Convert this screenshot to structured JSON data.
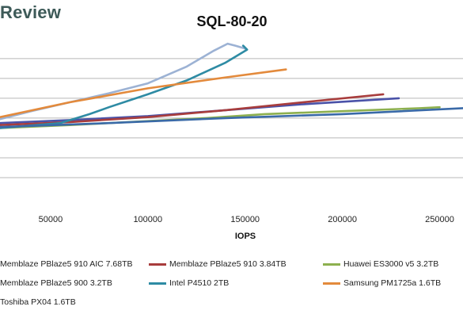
{
  "brand": {
    "text": "Review"
  },
  "chart_data": {
    "type": "line",
    "title": "SQL-80-20",
    "xlabel": "IOPS",
    "ylabel": "",
    "xlim": [
      24000,
      262000
    ],
    "ylim": [
      0,
      14
    ],
    "grid": true,
    "legend_position": "bottom",
    "x_ticks": [
      50000,
      100000,
      150000,
      200000,
      250000
    ],
    "y_ticks": [
      2,
      4,
      6,
      8,
      10,
      12,
      14
    ],
    "series": [
      {
        "name": "Memblaze PBlaze5 910 AIC 7.68TB",
        "color": "#4a52a8",
        "points": [
          [
            24000,
            7.5
          ],
          [
            60000,
            7.8
          ],
          [
            100000,
            8.2
          ],
          [
            140000,
            8.8
          ],
          [
            180000,
            9.4
          ],
          [
            229000,
            10.0
          ]
        ]
      },
      {
        "name": "Memblaze PBlaze5 910 3.84TB",
        "color": "#a83d3d",
        "points": [
          [
            24000,
            7.3
          ],
          [
            60000,
            7.6
          ],
          [
            100000,
            8.1
          ],
          [
            140000,
            8.8
          ],
          [
            180000,
            9.6
          ],
          [
            221000,
            10.4
          ]
        ]
      },
      {
        "name": "Huawei ES3000 v5 3.2TB",
        "color": "#8db04f",
        "points": [
          [
            24000,
            7.0
          ],
          [
            60000,
            7.3
          ],
          [
            100000,
            7.7
          ],
          [
            130000,
            8.0
          ],
          [
            160000,
            8.4
          ],
          [
            200000,
            8.7
          ],
          [
            240000,
            9.0
          ],
          [
            250000,
            9.1
          ]
        ]
      },
      {
        "name": "Memblaze PBlaze5 900 3.2TB",
        "color": "#9cb2d4",
        "points": [
          [
            24000,
            7.9
          ],
          [
            40000,
            8.7
          ],
          [
            60000,
            9.6
          ],
          [
            80000,
            10.5
          ],
          [
            100000,
            11.5
          ],
          [
            120000,
            13.2
          ],
          [
            134000,
            14.8
          ],
          [
            141000,
            15.5
          ],
          [
            145000,
            15.3
          ],
          [
            150000,
            15.0
          ]
        ]
      },
      {
        "name": "Intel P4510 2TB",
        "color": "#2e8ba4",
        "points": [
          [
            24000,
            7.0
          ],
          [
            55000,
            7.5
          ],
          [
            70000,
            8.4
          ],
          [
            80000,
            9.1
          ],
          [
            100000,
            10.4
          ],
          [
            120000,
            11.8
          ],
          [
            140000,
            13.6
          ],
          [
            151000,
            14.9
          ],
          [
            149000,
            15.3
          ]
        ]
      },
      {
        "name": "Samsung PM1725a 1.6TB",
        "color": "#e38a3c",
        "points": [
          [
            24000,
            8.1
          ],
          [
            60000,
            9.6
          ],
          [
            100000,
            11.0
          ],
          [
            140000,
            12.1
          ],
          [
            171000,
            12.9
          ]
        ]
      },
      {
        "name": "Toshiba PX04 1.6TB",
        "color": "#3a6aa8",
        "points": [
          [
            24000,
            7.1
          ],
          [
            80000,
            7.5
          ],
          [
            140000,
            8.0
          ],
          [
            200000,
            8.4
          ],
          [
            262000,
            9.0
          ]
        ]
      }
    ]
  }
}
